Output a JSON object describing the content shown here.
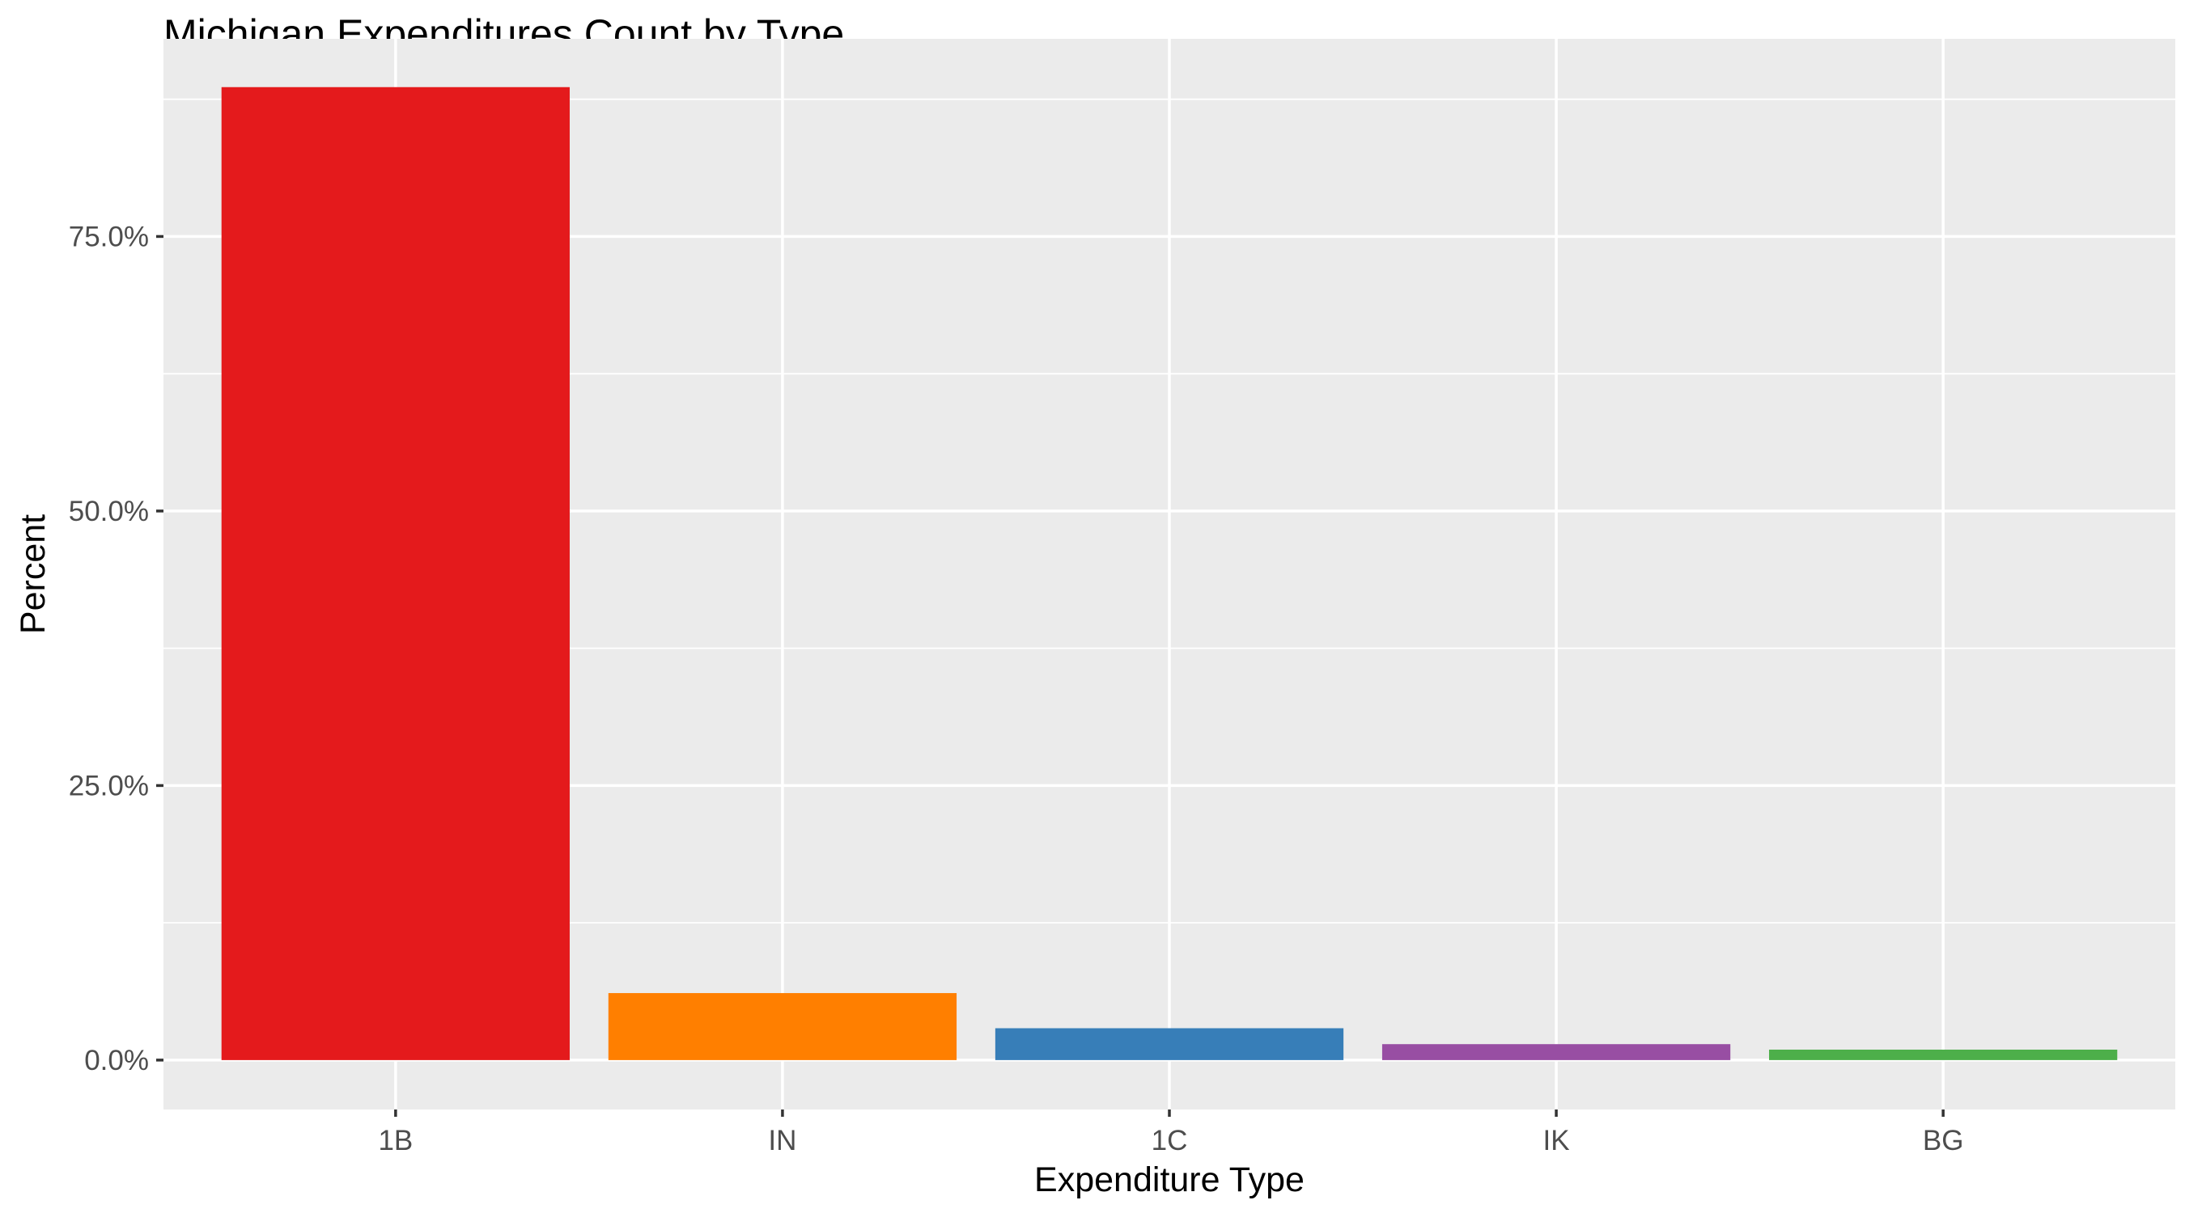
{
  "chart_data": {
    "type": "bar",
    "title": "Michigan Expenditures Count by Type",
    "xlabel": "Expenditure Type",
    "ylabel": "Percent",
    "categories": [
      "1B",
      "IN",
      "1C",
      "IK",
      "BG"
    ],
    "values": [
      88.6,
      6.1,
      2.9,
      1.45,
      0.95
    ],
    "value_unit": "percent",
    "bar_colors": [
      "#E41A1C",
      "#FF7F00",
      "#377EB8",
      "#984EA3",
      "#4DAF4A"
    ],
    "ylim": [
      -4.5,
      93
    ],
    "yticks": [
      0,
      25,
      50,
      75
    ],
    "ytick_labels": [
      "0.0%",
      "25.0%",
      "50.0%",
      "75.0%"
    ],
    "grid": true,
    "panel_color": "#EBEBEB",
    "legend": "none"
  }
}
